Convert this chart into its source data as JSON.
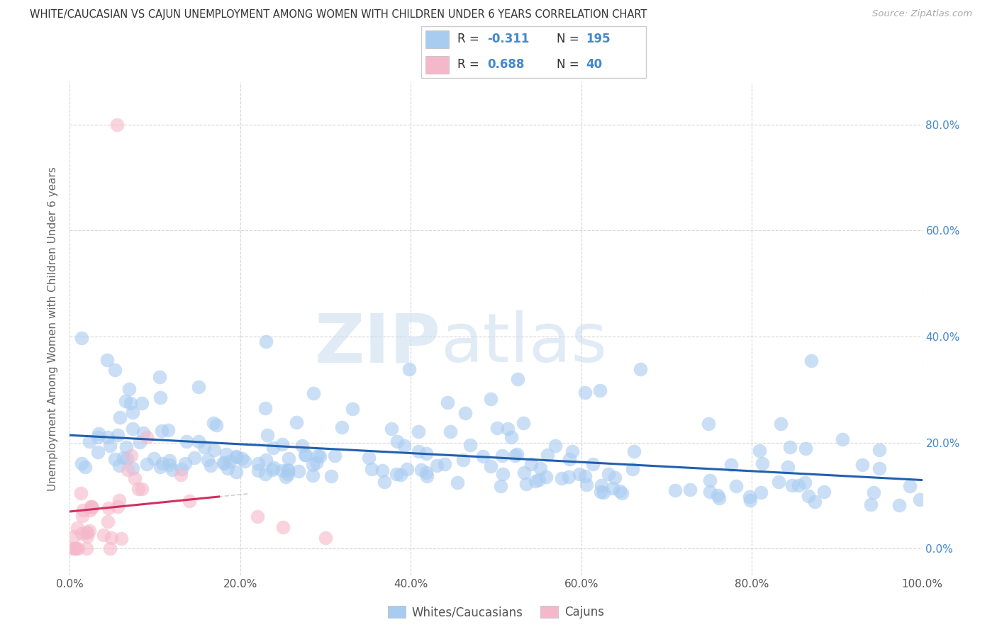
{
  "title": "WHITE/CAUCASIAN VS CAJUN UNEMPLOYMENT AMONG WOMEN WITH CHILDREN UNDER 6 YEARS CORRELATION CHART",
  "source": "Source: ZipAtlas.com",
  "ylabel": "Unemployment Among Women with Children Under 6 years",
  "xlim": [
    0.0,
    1.0
  ],
  "ylim": [
    -0.05,
    0.88
  ],
  "xtick_labels": [
    "0.0%",
    "20.0%",
    "40.0%",
    "60.0%",
    "80.0%",
    "100.0%"
  ],
  "xtick_vals": [
    0.0,
    0.2,
    0.4,
    0.6,
    0.8,
    1.0
  ],
  "ytick_labels": [
    "0.0%",
    "20.0%",
    "40.0%",
    "60.0%",
    "80.0%"
  ],
  "ytick_vals": [
    0.0,
    0.2,
    0.4,
    0.6,
    0.8
  ],
  "blue_color": "#A8CBF0",
  "pink_color": "#F5B8CB",
  "blue_line_color": "#2060B0",
  "pink_line_color": "#D03060",
  "legend_blue_R": "-0.311",
  "legend_blue_N": "195",
  "legend_pink_R": "0.688",
  "legend_pink_N": "40",
  "legend_label_blue": "Whites/Caucasians",
  "legend_label_pink": "Cajuns",
  "blue_n": 195,
  "pink_n": 40,
  "blue_seed": 123,
  "pink_seed": 456
}
